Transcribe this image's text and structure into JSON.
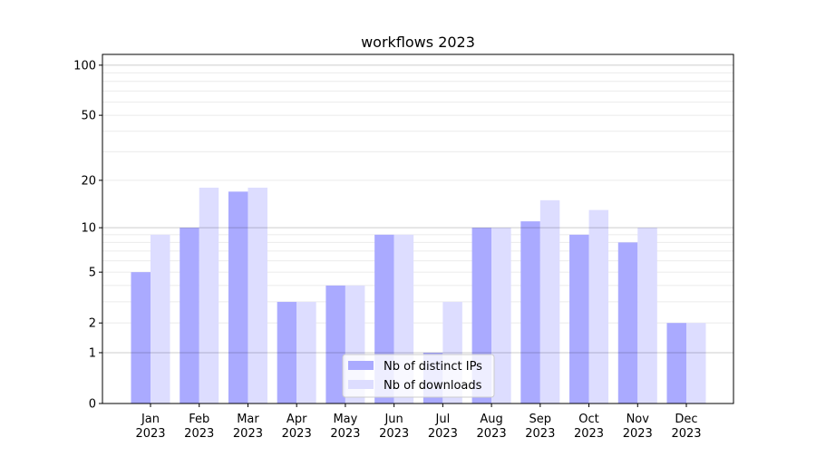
{
  "chart_data": {
    "type": "bar",
    "title": "workflows 2023",
    "xlabel": "",
    "ylabel": "",
    "yscale": "log10(1+y)",
    "ylim": [
      0,
      116
    ],
    "yticks": [
      0,
      1,
      2,
      5,
      10,
      20,
      50,
      100
    ],
    "grid": true,
    "legend_position": "bottom-center",
    "categories": [
      [
        "Jan",
        "2023"
      ],
      [
        "Feb",
        "2023"
      ],
      [
        "Mar",
        "2023"
      ],
      [
        "Apr",
        "2023"
      ],
      [
        "May",
        "2023"
      ],
      [
        "Jun",
        "2023"
      ],
      [
        "Jul",
        "2023"
      ],
      [
        "Aug",
        "2023"
      ],
      [
        "Sep",
        "2023"
      ],
      [
        "Oct",
        "2023"
      ],
      [
        "Nov",
        "2023"
      ],
      [
        "Dec",
        "2023"
      ]
    ],
    "series": [
      {
        "name": "Nb of distinct IPs",
        "color": "#aaaaff",
        "values": [
          5,
          10,
          17,
          3,
          4,
          9,
          1,
          10,
          11,
          9,
          8,
          2
        ]
      },
      {
        "name": "Nb of downloads",
        "color": "#ddddff",
        "values": [
          9,
          18,
          18,
          3,
          4,
          9,
          3,
          10,
          15,
          13,
          10,
          2
        ]
      }
    ]
  }
}
